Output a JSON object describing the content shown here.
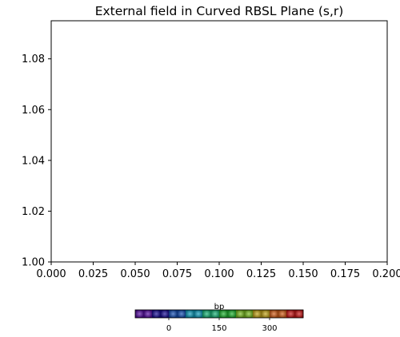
{
  "chart_data": {
    "type": "scatter",
    "title": "External field in Curved RBSL Plane (s,r)",
    "xlabel": "",
    "ylabel": "",
    "xlim": [
      0.0,
      0.2
    ],
    "ylim": [
      1.0,
      1.095
    ],
    "x_ticks": [
      0.0,
      0.025,
      0.05,
      0.075,
      0.1,
      0.125,
      0.15,
      0.175,
      0.2
    ],
    "x_tick_labels": [
      "0.000",
      "0.025",
      "0.050",
      "0.075",
      "0.100",
      "0.125",
      "0.150",
      "0.175",
      "0.200"
    ],
    "y_ticks": [
      1.0,
      1.02,
      1.04,
      1.06,
      1.08
    ],
    "y_tick_labels": [
      "1.00",
      "1.02",
      "1.04",
      "1.06",
      "1.08"
    ],
    "grid": false,
    "series": [],
    "colorbar": {
      "label": "bp",
      "orientation": "horizontal",
      "range": [
        -100,
        400
      ],
      "ticks": [
        0,
        150,
        300
      ],
      "tick_labels": [
        "0",
        "150",
        "300"
      ],
      "colors": [
        "#5a0fa8",
        "#1a0f9a",
        "#1450b8",
        "#10a0c0",
        "#18b87a",
        "#1fb830",
        "#7cc020",
        "#c8a818",
        "#d86018",
        "#d01818"
      ],
      "bands": 20
    }
  }
}
